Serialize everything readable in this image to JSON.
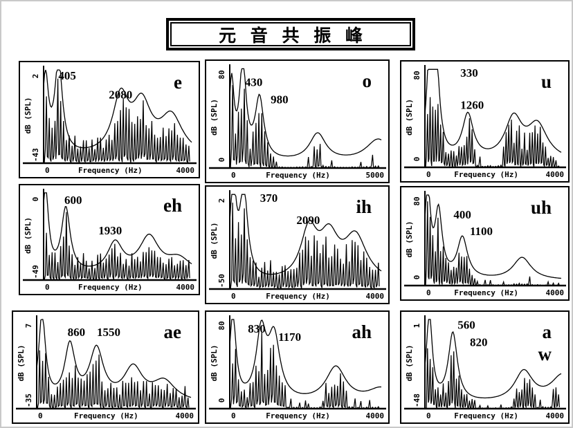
{
  "title": "元 音 共 振 峰",
  "colors": {
    "ink": "#000000",
    "background": "#ffffff",
    "frame": "#c9c9c9"
  },
  "chart_data": {
    "type": "line",
    "title": "元 音 共 振 峰",
    "description_layout": {
      "grid": "3x3",
      "grid_on": false
    },
    "panels": [
      {
        "vowel": "e",
        "vowel_line2": "",
        "f1": 405,
        "f2": 2080,
        "f1_label": "405",
        "f2_label": "2080",
        "y_label": "dB (SPL)",
        "y_max": "2",
        "y_min": "-43",
        "x_min": "0",
        "x_label": "Frequency (Hz)",
        "x_max": "4000",
        "x_range_hz": [
          0,
          4000
        ],
        "y_range_db": [
          -43,
          2
        ],
        "envelope_peaks": [
          [
            50,
            0.8
          ],
          [
            405,
            0.95
          ],
          [
            2080,
            0.58
          ],
          [
            2650,
            0.5
          ],
          [
            3450,
            0.4
          ]
        ],
        "noise_profile": "full",
        "label_pos": {
          "f1": [
            0.1,
            0.02
          ],
          "f2": [
            0.44,
            0.22
          ]
        }
      },
      {
        "vowel": "o",
        "vowel_line2": "",
        "f1": 430,
        "f2": 980,
        "f1_label": "430",
        "f2_label": "980",
        "y_label": "dB (SPL)",
        "y_max": "80",
        "y_min": "0",
        "x_min": "0",
        "x_label": "Frequency (Hz)",
        "x_max": "5000",
        "x_range_hz": [
          0,
          5000
        ],
        "y_range_db": [
          0,
          80
        ],
        "envelope_peaks": [
          [
            60,
            0.75
          ],
          [
            430,
            0.93
          ],
          [
            980,
            0.6
          ],
          [
            2900,
            0.27
          ],
          [
            4900,
            0.22
          ]
        ],
        "noise_profile": "low",
        "label_pos": {
          "f1": [
            0.1,
            0.1
          ],
          "f2": [
            0.27,
            0.27
          ]
        }
      },
      {
        "vowel": "u",
        "vowel_line2": "",
        "f1": 330,
        "f2": 1260,
        "f1_label": "330",
        "f2_label": "1260",
        "y_label": "dB (SPL)",
        "y_max": "80",
        "y_min": "0",
        "x_min": "0",
        "x_label": "Frequency (Hz)",
        "x_max": "4000",
        "x_range_hz": [
          0,
          4000
        ],
        "y_range_db": [
          0,
          80
        ],
        "envelope_peaks": [
          [
            140,
            0.95
          ],
          [
            330,
            0.88
          ],
          [
            1260,
            0.44
          ],
          [
            2600,
            0.4
          ],
          [
            3300,
            0.34
          ]
        ],
        "noise_profile": "low",
        "label_pos": {
          "f1": [
            0.26,
            0.0
          ],
          "f2": [
            0.26,
            0.32
          ]
        }
      },
      {
        "vowel": "eh",
        "vowel_line2": "",
        "f1": 600,
        "f2": 1930,
        "f1_label": "600",
        "f2_label": "1930",
        "y_label": "dB (SPL)",
        "y_max": "0",
        "y_min": "-49",
        "x_min": "0",
        "x_label": "Frequency (Hz)",
        "x_max": "4000",
        "x_range_hz": [
          0,
          4000
        ],
        "y_range_db": [
          -49,
          0
        ],
        "envelope_peaks": [
          [
            50,
            0.95
          ],
          [
            600,
            0.72
          ],
          [
            1930,
            0.33
          ],
          [
            2850,
            0.4
          ],
          [
            3650,
            0.16
          ]
        ],
        "noise_profile": "full",
        "label_pos": {
          "f1": [
            0.14,
            0.04
          ],
          "f2": [
            0.37,
            0.38
          ]
        }
      },
      {
        "vowel": "ih",
        "vowel_line2": "",
        "f1": 370,
        "f2": 2090,
        "f1_label": "370",
        "f2_label": "2090",
        "y_label": "dB (SPL)",
        "y_max": "2",
        "y_min": "-50",
        "x_min": "0",
        "x_label": "Frequency (Hz)",
        "x_max": "4000",
        "x_range_hz": [
          0,
          4000
        ],
        "y_range_db": [
          -50,
          2
        ],
        "envelope_peaks": [
          [
            90,
            0.95
          ],
          [
            370,
            0.9
          ],
          [
            2090,
            0.5
          ],
          [
            2620,
            0.42
          ],
          [
            3320,
            0.45
          ]
        ],
        "noise_profile": "full",
        "label_pos": {
          "f1": [
            0.2,
            0.0
          ],
          "f2": [
            0.44,
            0.23
          ]
        }
      },
      {
        "vowel": "uh",
        "vowel_line2": "",
        "f1": 400,
        "f2": 1100,
        "f1_label": "400",
        "f2_label": "1100",
        "y_label": "dB (SPL)",
        "y_max": "80",
        "y_min": "0",
        "x_min": "0",
        "x_label": "Frequency (Hz)",
        "x_max": "4000",
        "x_range_hz": [
          0,
          4000
        ],
        "y_range_db": [
          0,
          80
        ],
        "envelope_peaks": [
          [
            80,
            0.95
          ],
          [
            400,
            0.7
          ],
          [
            1100,
            0.44
          ],
          [
            2850,
            0.24
          ]
        ],
        "noise_profile": "low",
        "label_pos": {
          "f1": [
            0.21,
            0.17
          ],
          "f2": [
            0.33,
            0.35
          ]
        }
      },
      {
        "vowel": "ae",
        "vowel_line2": "",
        "f1": 860,
        "f2": 1550,
        "f1_label": "860",
        "f2_label": "1550",
        "y_label": "dB (SPL)",
        "y_max": "7",
        "y_min": "-35",
        "x_min": "0",
        "x_label": "Frequency (Hz)",
        "x_max": "4000",
        "x_range_hz": [
          0,
          4000
        ],
        "y_range_db": [
          -35,
          7
        ],
        "envelope_peaks": [
          [
            140,
            0.95
          ],
          [
            860,
            0.6
          ],
          [
            1550,
            0.56
          ],
          [
            2500,
            0.36
          ],
          [
            3300,
            0.22
          ]
        ],
        "noise_profile": "full",
        "label_pos": {
          "f1": [
            0.2,
            0.1
          ],
          "f2": [
            0.39,
            0.1
          ]
        }
      },
      {
        "vowel": "ah",
        "vowel_line2": "",
        "f1": 830,
        "f2": 1170,
        "f1_label": "830",
        "f2_label": "1170",
        "y_label": "dB (SPL)",
        "y_max": "80",
        "y_min": "0",
        "x_min": "0",
        "x_label": "Frequency (Hz)",
        "x_max": "4000",
        "x_range_hz": [
          0,
          4000
        ],
        "y_range_db": [
          0,
          80
        ],
        "envelope_peaks": [
          [
            80,
            0.95
          ],
          [
            830,
            0.72
          ],
          [
            1170,
            0.68
          ],
          [
            2800,
            0.38
          ],
          [
            4000,
            0.15
          ]
        ],
        "noise_profile": "low",
        "label_pos": {
          "f1": [
            0.12,
            0.06
          ],
          "f2": [
            0.32,
            0.15
          ]
        }
      },
      {
        "vowel": "a",
        "vowel_line2": "w",
        "f1": 560,
        "f2": 820,
        "f1_label": "560",
        "f2_label": "820",
        "y_label": "dB (SPL)",
        "y_max": "1",
        "y_min": "-48",
        "x_min": "0",
        "x_label": "Frequency (Hz)",
        "x_max": "4000",
        "x_range_hz": [
          0,
          4000
        ],
        "y_range_db": [
          -48,
          1
        ],
        "envelope_peaks": [
          [
            130,
            0.95
          ],
          [
            820,
            0.75
          ],
          [
            2900,
            0.33
          ],
          [
            4050,
            0.3
          ]
        ],
        "noise_profile": "low",
        "label_pos": {
          "f1": [
            0.24,
            0.02
          ],
          "f2": [
            0.33,
            0.21
          ]
        }
      }
    ]
  }
}
